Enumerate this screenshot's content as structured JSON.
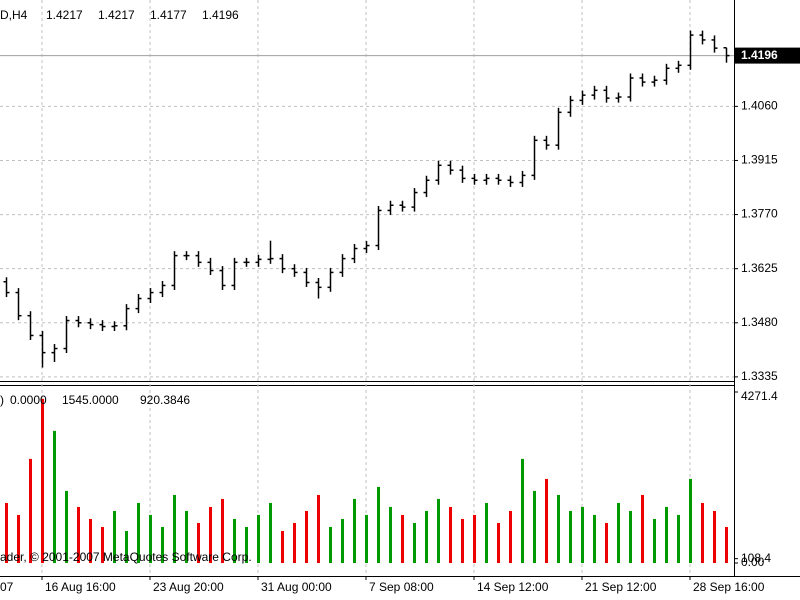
{
  "chart_data": [
    {
      "type": "ohlc",
      "title": "D,H4",
      "categories": [
        null,
        null,
        null,
        "16 Aug 16:00",
        null,
        null,
        null,
        null,
        null,
        null,
        null,
        null,
        "23 Aug 20:00",
        null,
        null,
        null,
        null,
        null,
        null,
        null,
        null,
        "31 Aug 00:00",
        null,
        null,
        null,
        null,
        null,
        null,
        null,
        null,
        "7 Sep 08:00",
        null,
        null,
        null,
        null,
        null,
        null,
        null,
        null,
        "14 Sep 12:00",
        null,
        null,
        null,
        null,
        null,
        null,
        null,
        null,
        "21 Sep 12:00",
        null,
        null,
        null,
        null,
        null,
        null,
        null,
        null,
        "28 Sep 16:00",
        null,
        null,
        null
      ],
      "first_label": "07",
      "open": [
        1.359,
        1.3561,
        1.3499,
        1.3446,
        1.34,
        1.3411,
        1.3486,
        1.348,
        1.3475,
        1.347,
        1.3472,
        1.3518,
        1.3545,
        1.3561,
        1.358,
        1.366,
        1.366,
        1.3642,
        1.362,
        1.358,
        1.3642,
        1.3642,
        1.365,
        1.3652,
        1.3625,
        1.3615,
        1.3588,
        1.3575,
        1.3615,
        1.3652,
        1.3679,
        1.3687,
        1.3781,
        1.3795,
        1.379,
        1.3829,
        1.3862,
        1.3902,
        1.3889,
        1.3867,
        1.3862,
        1.3867,
        1.3862,
        1.3856,
        1.3875,
        1.3969,
        1.3956,
        1.4044,
        1.4076,
        1.409,
        1.4103,
        1.4082,
        1.4085,
        1.4136,
        1.4125,
        1.413,
        1.4162,
        1.417,
        1.4251,
        1.4238,
        1.4217
      ],
      "high": [
        1.3602,
        1.3573,
        1.3511,
        1.3458,
        1.3423,
        1.3498,
        1.3498,
        1.3492,
        1.3487,
        1.3484,
        1.353,
        1.3557,
        1.3573,
        1.3592,
        1.3672,
        1.3672,
        1.3672,
        1.3654,
        1.3632,
        1.3654,
        1.3654,
        1.3662,
        1.37,
        1.3664,
        1.3637,
        1.3627,
        1.36,
        1.3627,
        1.3664,
        1.3691,
        1.3699,
        1.3793,
        1.3807,
        1.3807,
        1.3841,
        1.3874,
        1.3914,
        1.3914,
        1.3901,
        1.3879,
        1.3879,
        1.3879,
        1.3874,
        1.3887,
        1.3981,
        1.3981,
        1.4056,
        1.4088,
        1.4102,
        1.4115,
        1.4115,
        1.4097,
        1.4148,
        1.4148,
        1.4142,
        1.4174,
        1.4182,
        1.4263,
        1.4263,
        1.425,
        1.4217
      ],
      "low": [
        1.3549,
        1.3487,
        1.3434,
        1.336,
        1.3375,
        1.3399,
        1.3468,
        1.3463,
        1.3458,
        1.3458,
        1.346,
        1.3506,
        1.3533,
        1.3549,
        1.3568,
        1.3648,
        1.363,
        1.3608,
        1.3568,
        1.3568,
        1.363,
        1.363,
        1.3638,
        1.3613,
        1.3603,
        1.3576,
        1.3545,
        1.3563,
        1.3603,
        1.364,
        1.3667,
        1.3675,
        1.3769,
        1.3778,
        1.3778,
        1.3817,
        1.385,
        1.3877,
        1.3855,
        1.385,
        1.385,
        1.385,
        1.3844,
        1.3844,
        1.3863,
        1.3944,
        1.3944,
        1.4032,
        1.4064,
        1.4078,
        1.407,
        1.407,
        1.4073,
        1.4113,
        1.4113,
        1.4118,
        1.415,
        1.4158,
        1.4226,
        1.4204,
        1.4177
      ],
      "close": [
        1.3561,
        1.3499,
        1.3446,
        1.34,
        1.3411,
        1.3486,
        1.348,
        1.3475,
        1.347,
        1.3472,
        1.3518,
        1.3545,
        1.3561,
        1.358,
        1.366,
        1.366,
        1.3642,
        1.362,
        1.358,
        1.3642,
        1.3642,
        1.365,
        1.3652,
        1.3625,
        1.3615,
        1.3588,
        1.3575,
        1.3615,
        1.3652,
        1.3679,
        1.3687,
        1.3781,
        1.3795,
        1.379,
        1.3829,
        1.3862,
        1.3902,
        1.3889,
        1.3867,
        1.3862,
        1.3867,
        1.3862,
        1.3856,
        1.3875,
        1.3969,
        1.3956,
        1.4044,
        1.4076,
        1.409,
        1.4103,
        1.4082,
        1.4085,
        1.4136,
        1.4125,
        1.413,
        1.4162,
        1.417,
        1.4251,
        1.4238,
        1.4216,
        1.4196
      ],
      "color": "#000000",
      "ylim": [
        1.3324,
        1.4345
      ],
      "yticks": [
        {
          "value": 1.406,
          "label": "1.4060"
        },
        1.3915,
        {
          "value": 1.377,
          "label": "1.3770"
        },
        1.3625,
        {
          "value": 1.348,
          "label": "1.3480"
        },
        1.3335
      ],
      "grid": true
    },
    {
      "type": "bar",
      "title": ")",
      "header_values": [
        {
          "value": 0,
          "label": "0.0000"
        },
        {
          "value": 1545,
          "label": "1545.0000"
        },
        920.3846
      ],
      "values": [
        1500,
        1200,
        2600,
        4100,
        3300,
        1800,
        1400,
        1100,
        900,
        1300,
        800,
        1500,
        1200,
        900,
        1700,
        1300,
        1000,
        1400,
        1600,
        1100,
        900,
        1200,
        1500,
        800,
        1000,
        1300,
        1700,
        900,
        1100,
        1600,
        1200,
        1900,
        1400,
        1200,
        1000,
        1300,
        1600,
        1400,
        1100,
        1200,
        1500,
        1000,
        1300,
        2600,
        1800,
        2100,
        1700,
        1300,
        1400,
        1200,
        1000,
        1500,
        1300,
        1700,
        1100,
        1400,
        1200,
        2100,
        1500,
        1300,
        900
      ],
      "up_color": "#009900",
      "down_color": "#ee0000",
      "ylim": [
        0,
        4271.4
      ],
      "yticks": [
        4271.4,
        {
          "value": 0,
          "label": "0.00"
        },
        108.4
      ],
      "annotation": "ader, © 2001-2007 MetaQuotes Software Corp."
    }
  ]
}
